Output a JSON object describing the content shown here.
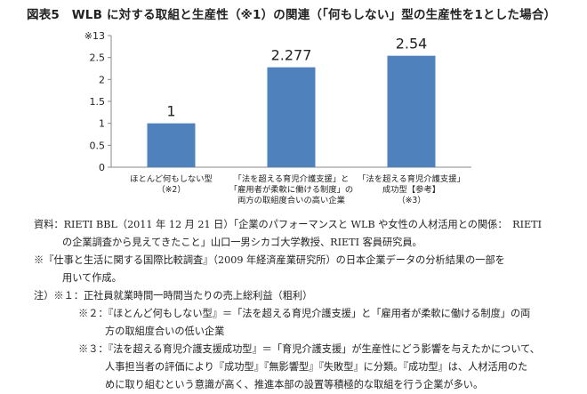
{
  "title": "図表5　WLB に対する取組と生産性（※1）の関連（「何もしない」型の生産性を1とした場合）",
  "chart_data": {
    "type": "bar",
    "title": "",
    "y_axis_unit_label": "※1",
    "ylim": [
      0,
      3
    ],
    "y_ticks": [
      "0",
      "0.5",
      "1",
      "1.5",
      "2",
      "2.5",
      "3"
    ],
    "grid": false,
    "bar_color": "#4f81bd",
    "categories": [
      {
        "lines": [
          "ほとんど何もしない型",
          "（※2）"
        ],
        "value": 1,
        "value_label": "1"
      },
      {
        "lines": [
          "「法を超える育児介護支援」と",
          "「雇用者が柔軟に働ける制度」の",
          "両方の取組度合いの高い企業"
        ],
        "value": 2.277,
        "value_label": "2.277"
      },
      {
        "lines": [
          "「法を超える育児介護支援」",
          "成功型【参考】",
          "（※3）"
        ],
        "value": 2.54,
        "value_label": "2.54"
      }
    ]
  },
  "notes": [
    {
      "indent": 0,
      "text": "資料：RIETI BBL（2011 年 12 月 21 日）「企業のパフォーマンスと WLB や女性の人材活用との関係：　RIETI"
    },
    {
      "indent": 1,
      "text": "の企業調査から見えてきたこと」山口一男シカゴ大学教授、RIETI 客員研究員。"
    },
    {
      "indent": 0,
      "text": "※『仕事と生活に関する国際比較調査』（2009 年経済産業研究所）の日本企業データの分析結果の一部を"
    },
    {
      "indent": 1,
      "text": "用いて作成。"
    },
    {
      "indent": 0,
      "text": "注）※１：正社員就業時間一時間当たりの売上総利益（粗利）"
    },
    {
      "indent": 2,
      "text": "※２：『ほとんど何もしない型』＝「法を超える育児介護支援」と「雇用者が柔軟に働ける制度」の両"
    },
    {
      "indent": 3,
      "text": "方の取組度合いの低い企業"
    },
    {
      "indent": 2,
      "text": "※３：『法を超える育児介護支援成功型』＝「育児介護支援」が生産性にどう影響を与えたかについて、"
    },
    {
      "indent": 3,
      "text": "人事担当者の評価により『成功型』『無影響型』『失敗型』に分類。『成功型』は、人材活用のた"
    },
    {
      "indent": 3,
      "text": "めに取り組むという意識が高く、推進本部の設置等積極的な取組を行う企業が多い。"
    }
  ]
}
